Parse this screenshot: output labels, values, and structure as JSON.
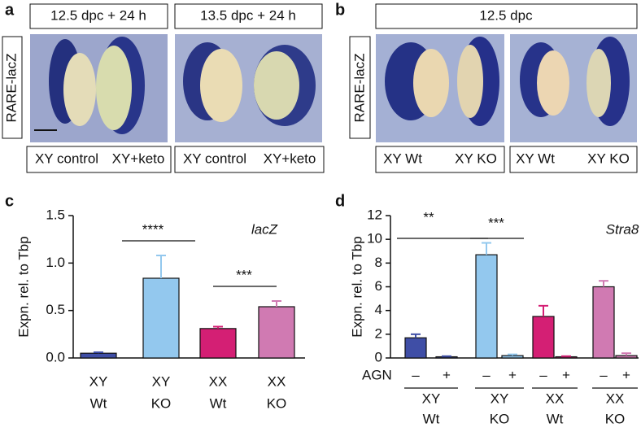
{
  "panel_a": {
    "letter": "a",
    "headers": [
      "12.5 dpc + 24 h",
      "13.5 dpc + 24 h"
    ],
    "row_label": "RARE-lacZ",
    "footers": [
      [
        "XY control",
        "XY+keto"
      ],
      [
        "XY control",
        "XY+keto"
      ]
    ]
  },
  "panel_b": {
    "letter": "b",
    "header": "12.5 dpc",
    "row_label": "RARE-lacZ",
    "footers": [
      [
        "XY Wt",
        "XY KO"
      ],
      [
        "XY Wt",
        "XY KO"
      ]
    ]
  },
  "chart_data": [
    {
      "type": "bar",
      "letter": "c",
      "y_label": "Expn. rel. to Tbp",
      "annotation": "lacZ",
      "categories": [
        [
          "XY",
          "Wt"
        ],
        [
          "XY",
          "KO"
        ],
        [
          "XX",
          "Wt"
        ],
        [
          "XX",
          "KO"
        ]
      ],
      "values": [
        0.05,
        0.84,
        0.31,
        0.54
      ],
      "errors": [
        0.01,
        0.24,
        0.02,
        0.06
      ],
      "colors": [
        "#3f4ea6",
        "#93c8ee",
        "#d41f74",
        "#d07ab2"
      ],
      "ylim": [
        0,
        1.5
      ],
      "yticks": [
        {
          "value": 0,
          "label": "0.0"
        },
        0.5,
        {
          "value": 1,
          "label": "1.0"
        },
        1.5
      ],
      "significance": [
        "****",
        "***"
      ]
    },
    {
      "type": "bar",
      "letter": "d",
      "y_label": "Expn. rel. to Tbp",
      "annotation": "Stra8",
      "treatment_label": "AGN",
      "categories": [
        "–",
        "+",
        "–",
        "+",
        "–",
        "+",
        "–",
        "+"
      ],
      "groups": [
        [
          "XY",
          "Wt"
        ],
        [
          "XY",
          "KO"
        ],
        [
          "XX",
          "Wt"
        ],
        [
          "XX",
          "KO"
        ]
      ],
      "values": [
        1.7,
        0.1,
        8.7,
        0.2,
        3.5,
        0.1,
        6.0,
        0.2
      ],
      "errors": [
        0.3,
        0.05,
        1.0,
        0.1,
        0.9,
        0.05,
        0.5,
        0.2
      ],
      "colors": [
        "#3f4ea6",
        "#3f4ea6",
        "#93c8ee",
        "#93c8ee",
        "#d41f74",
        "#d41f74",
        "#d07ab2",
        "#d07ab2"
      ],
      "ylim": [
        0,
        12
      ],
      "yticks": [
        0,
        2,
        4,
        6,
        8,
        10,
        12
      ],
      "significance": [
        "**",
        "***"
      ]
    }
  ]
}
